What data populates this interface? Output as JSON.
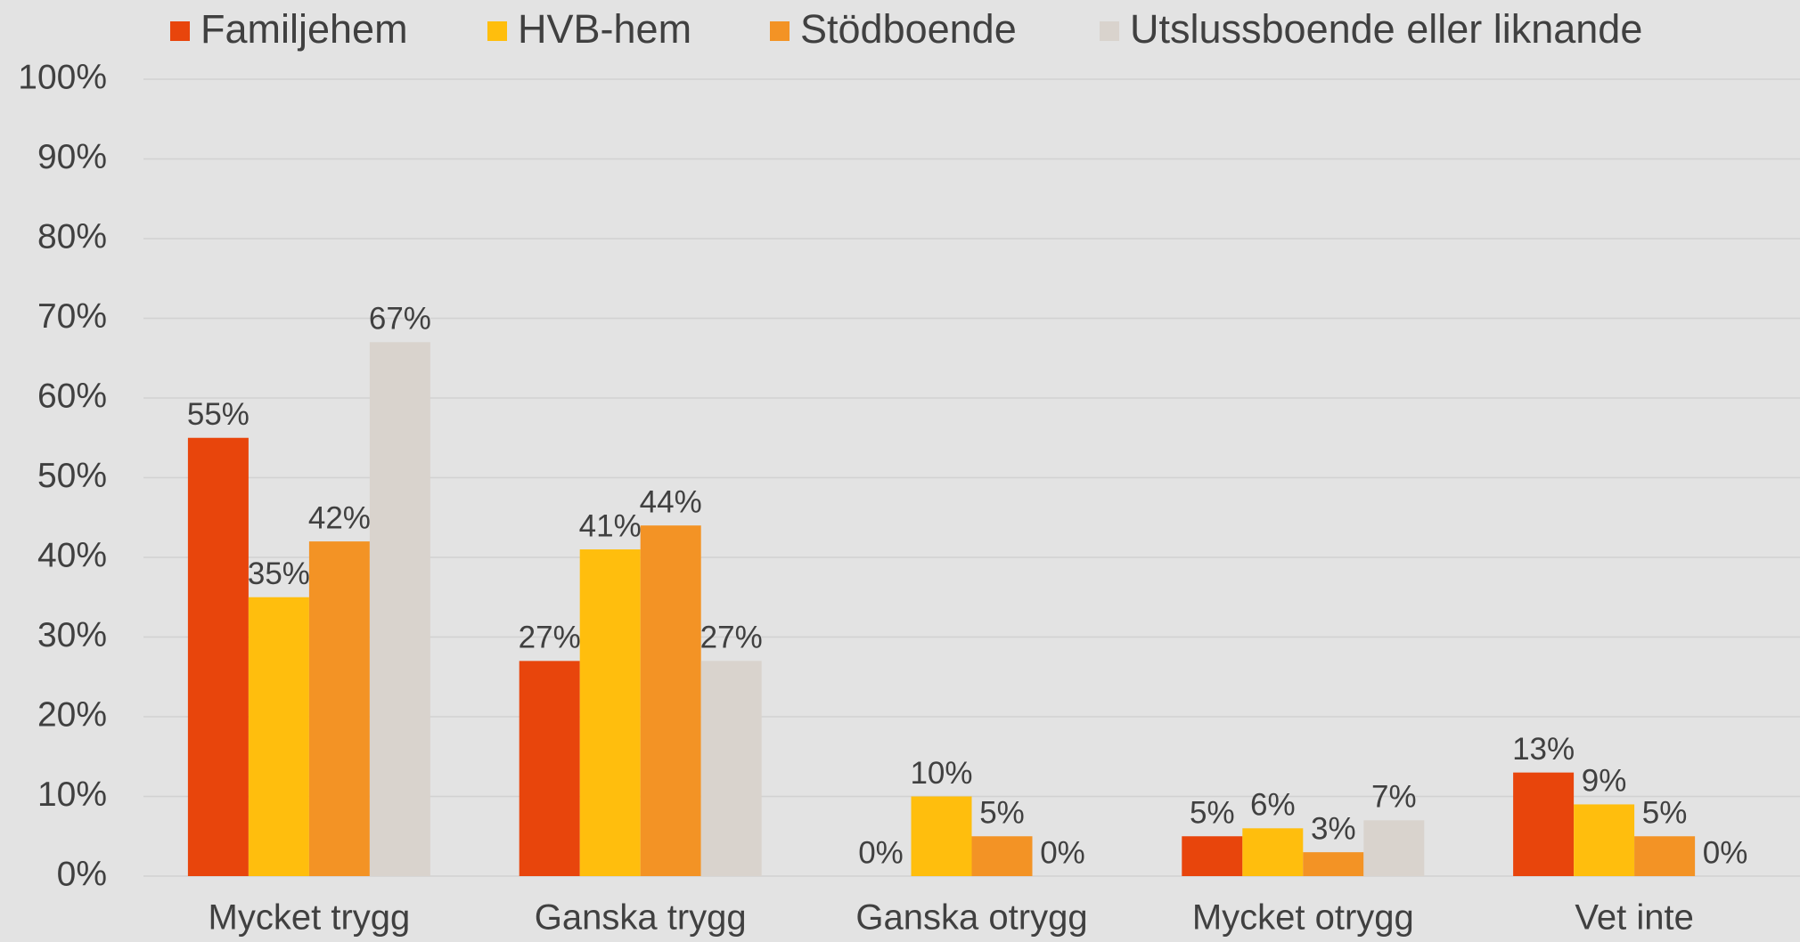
{
  "chart_data": {
    "type": "bar",
    "categories": [
      "Mycket trygg",
      "Ganska trygg",
      "Ganska otrygg",
      "Mycket otrygg",
      "Vet inte"
    ],
    "series": [
      {
        "name": "Familjehem",
        "color": "#e8450c",
        "values": [
          55,
          27,
          0,
          5,
          13
        ],
        "value_labels": [
          "55%",
          "27%",
          "0%",
          "5%",
          "13%"
        ]
      },
      {
        "name": "HVB-hem",
        "color": "#ffbe0d",
        "values": [
          35,
          41,
          10,
          6,
          9
        ],
        "value_labels": [
          "35%",
          "41%",
          "10%",
          "6%",
          "9%"
        ]
      },
      {
        "name": "Stödboende",
        "color": "#f39325",
        "values": [
          42,
          44,
          5,
          3,
          5
        ],
        "value_labels": [
          "42%",
          "44%",
          "5%",
          "3%",
          "5%"
        ]
      },
      {
        "name": "Utslussboende eller liknande",
        "color": "#d9d3cd",
        "values": [
          67,
          27,
          0,
          7,
          0
        ],
        "value_labels": [
          "67%",
          "27%",
          "0%",
          "7%",
          "0%"
        ]
      }
    ],
    "ylim": [
      0,
      100
    ],
    "yticks": [
      {
        "value": 0,
        "label": "0%"
      },
      {
        "value": 10,
        "label": "10%"
      },
      {
        "value": 20,
        "label": "20%"
      },
      {
        "value": 30,
        "label": "30%"
      },
      {
        "value": 40,
        "label": "40%"
      },
      {
        "value": 50,
        "label": "50%"
      },
      {
        "value": 60,
        "label": "60%"
      },
      {
        "value": 70,
        "label": "70%"
      },
      {
        "value": 80,
        "label": "80%"
      },
      {
        "value": 90,
        "label": "90%"
      },
      {
        "value": 100,
        "label": "100%"
      }
    ],
    "grid": true,
    "legend": "top"
  }
}
